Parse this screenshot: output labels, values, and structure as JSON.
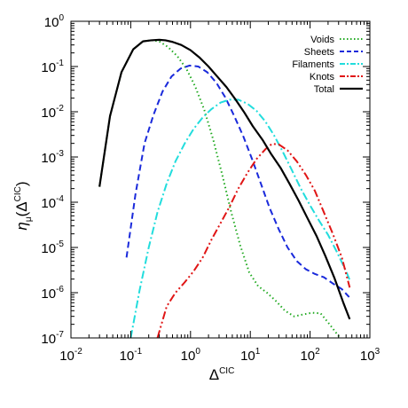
{
  "chart_data": {
    "type": "line",
    "xscale": "log",
    "yscale": "log",
    "xlim": [
      0.01,
      1000
    ],
    "ylim": [
      1e-07,
      1
    ],
    "xlabel": {
      "base": "Δ",
      "sup": "CIC"
    },
    "ylabel": {
      "main": "η",
      "sub": "μ",
      "open": "(Δ",
      "sup": "CIC",
      "close": ")"
    },
    "x_ticks": [
      {
        "base": "10",
        "exp": "-2",
        "value": 0.01
      },
      {
        "base": "10",
        "exp": "-1",
        "value": 0.1
      },
      {
        "base": "10",
        "exp": "0",
        "value": 1
      },
      {
        "base": "10",
        "exp": "1",
        "value": 10
      },
      {
        "base": "10",
        "exp": "2",
        "value": 100
      },
      {
        "base": "10",
        "exp": "3",
        "value": 1000
      }
    ],
    "y_ticks": [
      {
        "base": "10",
        "exp": "0",
        "value": 1
      },
      {
        "base": "10",
        "exp": "-1",
        "value": 0.1
      },
      {
        "base": "10",
        "exp": "-2",
        "value": 0.01
      },
      {
        "base": "10",
        "exp": "-3",
        "value": 0.001
      },
      {
        "base": "10",
        "exp": "-4",
        "value": 0.0001
      },
      {
        "base": "10",
        "exp": "-5",
        "value": 1e-05
      },
      {
        "base": "10",
        "exp": "-6",
        "value": 1e-06
      },
      {
        "base": "10",
        "exp": "-7",
        "value": 1e-07
      }
    ],
    "legend_position": "top-right",
    "grid": false,
    "series": [
      {
        "name": "Voids",
        "color": "#22aa22",
        "style": "dotted",
        "x": [
          0.03,
          0.045,
          0.07,
          0.11,
          0.16,
          0.22,
          0.3,
          0.42,
          0.6,
          0.85,
          1.2,
          1.7,
          2.4,
          3.4,
          4.8,
          6.8,
          9.6,
          13.5,
          19,
          27,
          38,
          54,
          76,
          107,
          150,
          212,
          300,
          420
        ],
        "y": [
          0.00022,
          0.008,
          0.075,
          0.24,
          0.36,
          0.38,
          0.36,
          0.27,
          0.17,
          0.09,
          0.036,
          0.011,
          0.0024,
          0.0004,
          6e-05,
          1.1e-05,
          2.8e-06,
          1.4e-06,
          1e-06,
          6.5e-07,
          4e-07,
          3e-07,
          3.3e-07,
          3.6e-07,
          3.5e-07,
          2e-07,
          1.1e-07,
          3e-08
        ]
      },
      {
        "name": "Sheets",
        "color": "#1a2adb",
        "style": "dashed",
        "x": [
          0.085,
          0.12,
          0.17,
          0.24,
          0.34,
          0.48,
          0.68,
          0.96,
          1.35,
          1.9,
          2.7,
          3.8,
          5.4,
          7.6,
          10.7,
          15,
          21,
          30,
          42,
          60,
          85,
          120,
          170,
          240,
          340,
          450
        ],
        "y": [
          6e-06,
          0.00015,
          0.002,
          0.0085,
          0.028,
          0.06,
          0.09,
          0.105,
          0.1,
          0.075,
          0.044,
          0.021,
          0.008,
          0.0029,
          0.0009,
          0.00026,
          7.5e-05,
          2.5e-05,
          1e-05,
          5e-06,
          3.3e-06,
          2.6e-06,
          2.2e-06,
          1.6e-06,
          1.2e-06,
          8e-07
        ]
      },
      {
        "name": "Filaments",
        "color": "#22dddd",
        "style": "dashdot",
        "x": [
          0.1,
          0.14,
          0.2,
          0.28,
          0.4,
          0.56,
          0.8,
          1.13,
          1.6,
          2.25,
          3.2,
          4.5,
          6.3,
          9,
          12.7,
          18,
          25,
          35,
          50,
          70,
          100,
          140,
          200,
          280,
          400,
          460
        ],
        "y": [
          1e-07,
          1.1e-06,
          1e-05,
          6e-05,
          0.00026,
          0.0008,
          0.002,
          0.0042,
          0.0075,
          0.0115,
          0.016,
          0.0185,
          0.0185,
          0.015,
          0.0105,
          0.006,
          0.003,
          0.0013,
          0.0005,
          0.0002,
          8.5e-05,
          4e-05,
          1.9e-05,
          8e-06,
          3e-06,
          1.9e-06
        ]
      },
      {
        "name": "Knots",
        "color": "#e01515",
        "style": "dashdotdot",
        "x": [
          0.28,
          0.4,
          0.56,
          0.8,
          1.13,
          1.6,
          2.25,
          3.2,
          4.5,
          6.3,
          9,
          12.7,
          18,
          23,
          30,
          42,
          60,
          85,
          120,
          170,
          240,
          340,
          460
        ],
        "y": [
          1e-07,
          5e-07,
          1e-06,
          1.7e-06,
          3e-06,
          6e-06,
          1.5e-05,
          3.5e-05,
          8e-05,
          0.0002,
          0.00045,
          0.0009,
          0.0015,
          0.00195,
          0.0019,
          0.0014,
          0.0008,
          0.0004,
          0.00018,
          6e-05,
          2e-05,
          6e-06,
          1.3e-06
        ]
      },
      {
        "name": "Total",
        "color": "#000000",
        "style": "solid",
        "x": [
          0.03,
          0.045,
          0.07,
          0.11,
          0.16,
          0.22,
          0.3,
          0.38,
          0.5,
          0.7,
          1.0,
          1.4,
          2.0,
          2.8,
          4.0,
          5.6,
          8,
          11,
          16,
          22,
          32,
          45,
          64,
          90,
          128,
          180,
          256,
          360,
          460
        ],
        "y": [
          0.00022,
          0.008,
          0.075,
          0.24,
          0.36,
          0.38,
          0.39,
          0.38,
          0.35,
          0.3,
          0.23,
          0.16,
          0.1,
          0.06,
          0.035,
          0.019,
          0.0095,
          0.0048,
          0.0024,
          0.0012,
          0.00058,
          0.00026,
          0.00011,
          4.5e-05,
          1.8e-05,
          6.5e-06,
          2.1e-06,
          6e-07,
          2.6e-07
        ]
      }
    ]
  }
}
